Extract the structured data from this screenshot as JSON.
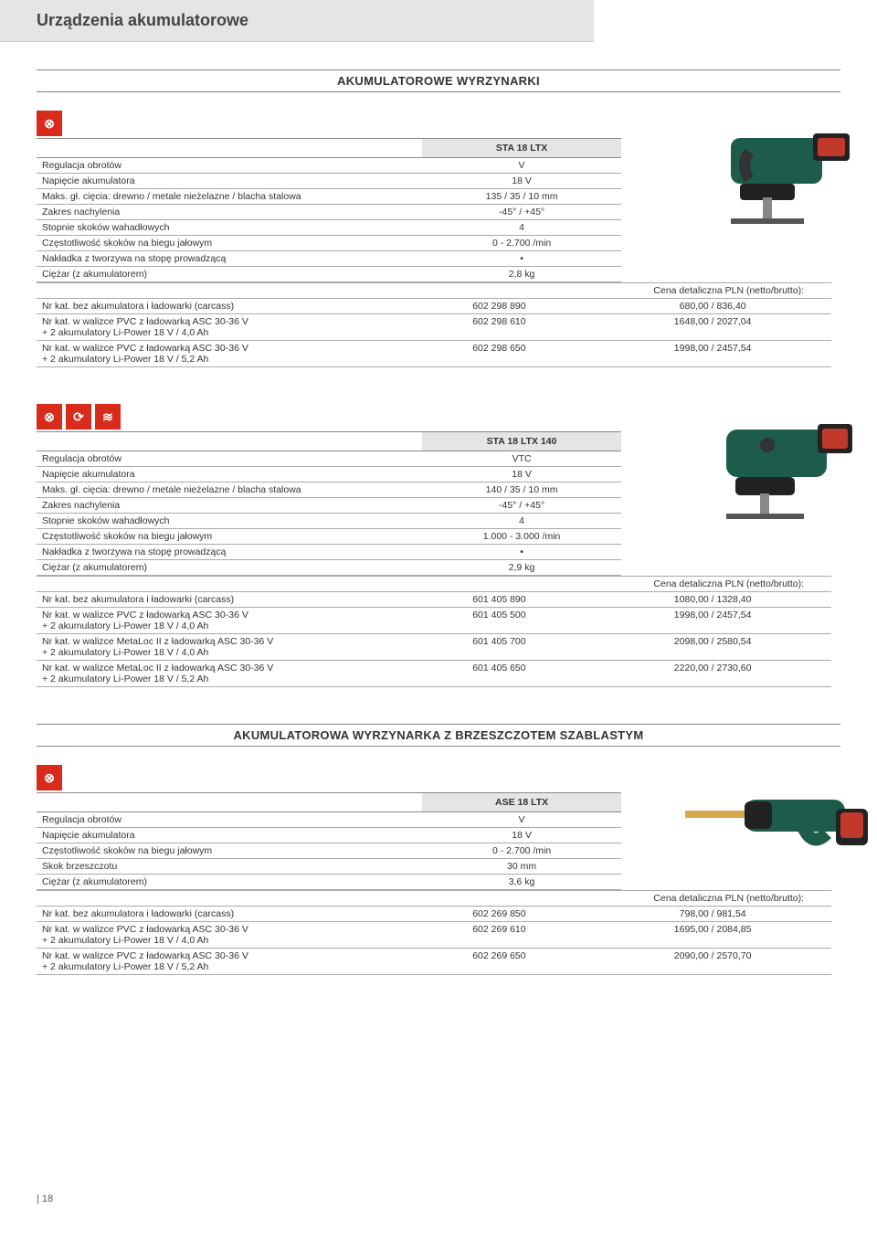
{
  "page_title": "Urządzenia akumulatorowe",
  "page_footer": "| 18",
  "colors": {
    "icon_bg": "#d92b1c",
    "header_bg": "#e5e5e5",
    "border": "#aaaaaa",
    "tool_body": "#1d5c4a",
    "tool_accent_red": "#c0392b",
    "tool_black": "#222222"
  },
  "section1": {
    "title": "AKUMULATOROWE WYRZYNARKI",
    "product1": {
      "model": "STA 18 LTX",
      "specs": [
        {
          "label": "Regulacja obrotów",
          "value": "V"
        },
        {
          "label": "Napięcie akumulatora",
          "value": "18 V"
        },
        {
          "label": "Maks. gł. cięcia: drewno / metale nieżelazne / blacha stalowa",
          "value": "135 / 35 / 10 mm"
        },
        {
          "label": "Zakres nachylenia",
          "value": "-45° / +45°"
        },
        {
          "label": "Stopnie skoków wahadłowych",
          "value": "4"
        },
        {
          "label": "Częstotliwość skoków na biegu jałowym",
          "value": "0 - 2.700 /min"
        },
        {
          "label": "Nakładka z tworzywa na stopę prowadzącą",
          "value": "•"
        },
        {
          "label": "Ciężar (z akumulatorem)",
          "value": "2,8 kg"
        }
      ],
      "price_header": "Cena detaliczna PLN (netto/brutto):",
      "variants": [
        {
          "label": "Nr kat. bez akumulatora i ładowarki (carcass)",
          "sku": "602 298 890",
          "price": "680,00 / 836,40"
        },
        {
          "label": "Nr kat. w walizce PVC z ładowarką ASC 30-36 V\n+ 2 akumulatory Li-Power 18 V / 4,0 Ah",
          "sku": "602 298 610",
          "price": "1648,00 / 2027,04"
        },
        {
          "label": "Nr kat. w walizce PVC z ładowarką ASC 30-36 V\n+ 2 akumulatory Li-Power 18 V / 5,2 Ah",
          "sku": "602 298 650",
          "price": "1998,00 / 2457,54"
        }
      ]
    },
    "product2": {
      "model": "STA 18 LTX 140",
      "specs": [
        {
          "label": "Regulacja obrotów",
          "value": "VTC"
        },
        {
          "label": "Napięcie akumulatora",
          "value": "18 V"
        },
        {
          "label": "Maks. gł. cięcia: drewno / metale nieżelazne / blacha stalowa",
          "value": "140 / 35 / 10 mm"
        },
        {
          "label": "Zakres nachylenia",
          "value": "-45° / +45°"
        },
        {
          "label": "Stopnie skoków wahadłowych",
          "value": "4"
        },
        {
          "label": "Częstotliwość skoków na biegu jałowym",
          "value": "1.000 - 3.000 /min"
        },
        {
          "label": "Nakładka z tworzywa na stopę prowadzącą",
          "value": "•"
        },
        {
          "label": "Ciężar (z akumulatorem)",
          "value": "2,9 kg"
        }
      ],
      "price_header": "Cena detaliczna PLN (netto/brutto):",
      "variants": [
        {
          "label": "Nr kat. bez akumulatora i ładowarki (carcass)",
          "sku": "601 405 890",
          "price": "1080,00 / 1328,40"
        },
        {
          "label": "Nr kat. w walizce PVC z ładowarką ASC 30-36 V\n+ 2 akumulatory Li-Power 18 V / 4,0 Ah",
          "sku": "601 405 500",
          "price": "1998,00 / 2457,54"
        },
        {
          "label": "Nr kat. w walizce MetaLoc II z ładowarką ASC 30-36 V\n+ 2 akumulatory Li-Power 18 V / 4,0 Ah",
          "sku": "601 405 700",
          "price": "2098,00 / 2580,54"
        },
        {
          "label": "Nr kat. w walizce MetaLoc II z ładowarką ASC 30-36 V\n+ 2 akumulatory Li-Power 18 V / 5,2 Ah",
          "sku": "601 405 650",
          "price": "2220,00 / 2730,60"
        }
      ]
    }
  },
  "section2": {
    "title": "AKUMULATOROWA WYRZYNARKA Z BRZESZCZOTEM SZABLASTYM",
    "product1": {
      "model": "ASE 18 LTX",
      "specs": [
        {
          "label": "Regulacja obrotów",
          "value": "V"
        },
        {
          "label": "Napięcie akumulatora",
          "value": "18 V"
        },
        {
          "label": "Częstotliwość skoków na biegu jałowym",
          "value": "0 - 2.700 /min"
        },
        {
          "label": "Skok brzeszczotu",
          "value": "30 mm"
        },
        {
          "label": "Ciężar (z akumulatorem)",
          "value": "3,6 kg"
        }
      ],
      "price_header": "Cena detaliczna PLN (netto/brutto):",
      "variants": [
        {
          "label": "Nr kat. bez akumulatora i ładowarki (carcass)",
          "sku": "602 269 850",
          "price": "798,00 / 981,54"
        },
        {
          "label": "Nr kat. w walizce PVC z ładowarką ASC 30-36 V\n+ 2 akumulatory Li-Power 18 V / 4,0 Ah",
          "sku": "602 269 610",
          "price": "1695,00 / 2084,85"
        },
        {
          "label": "Nr kat. w walizce PVC z ładowarką ASC 30-36 V\n+ 2 akumulatory Li-Power 18 V / 5,2 Ah",
          "sku": "602 269 650",
          "price": "2090,00 / 2570,70"
        }
      ]
    }
  }
}
